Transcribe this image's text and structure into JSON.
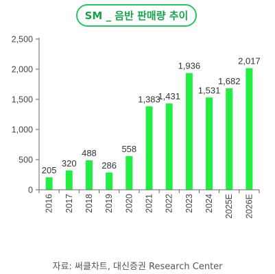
{
  "chart_data": {
    "type": "bar",
    "title": "SM _ 음반 판매량 추이",
    "categories": [
      "2016",
      "2017",
      "2018",
      "2019",
      "2020",
      "2021",
      "2022",
      "2023",
      "2024",
      "2025E",
      "2026E"
    ],
    "series": [
      {
        "values": [
          205,
          320,
          488,
          286,
          558,
          1383,
          1431,
          1936,
          1531,
          1682,
          2017
        ]
      }
    ],
    "data_labels": [
      "205",
      "320",
      "488",
      "286",
      "558",
      "1,383",
      "1,431",
      "1,936",
      "1,531",
      "1,682",
      "2,017"
    ],
    "ylim": [
      0,
      2500
    ],
    "yticks": [
      0,
      500,
      1000,
      1500,
      2000,
      2500
    ],
    "ytick_labels": [
      "0",
      "500",
      "1,000",
      "1,500",
      "2,000",
      "2,500"
    ],
    "bar_color": "#22ee44",
    "grid": false,
    "xlabel": "",
    "ylabel": ""
  },
  "source": "자료: 써클차트, 대신증권 Research Center"
}
